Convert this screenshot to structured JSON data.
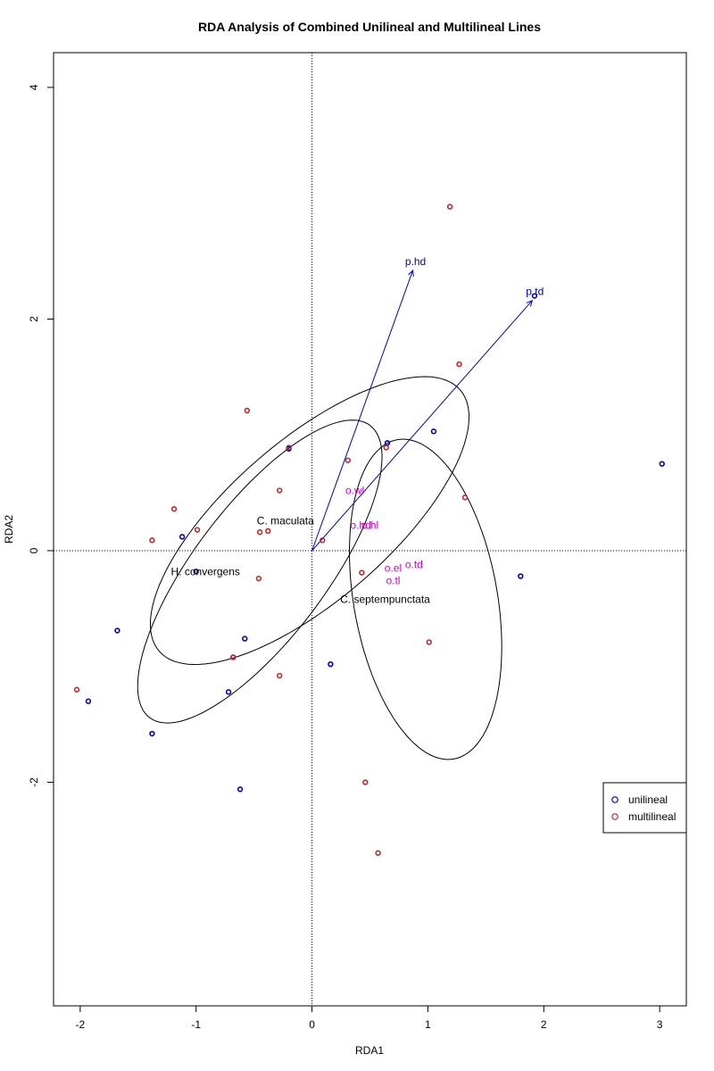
{
  "chart_data": {
    "type": "scatter",
    "title": "RDA Analysis of Combined Unilineal and Multilineal Lines",
    "xlabel": "RDA1",
    "ylabel": "RDA2",
    "xlim": [
      -2.23,
      3.23
    ],
    "ylim": [
      -3.93,
      4.3
    ],
    "x_ticks": [
      -2,
      -1,
      0,
      1,
      2,
      3
    ],
    "y_ticks": [
      -2,
      0,
      2,
      4
    ],
    "reference_lines": {
      "x": 0,
      "y": 0,
      "style": "dotted"
    },
    "legend_position": "right",
    "series": [
      {
        "name": "unilineal",
        "color": "#0000cc",
        "points": [
          [
            0.65,
            0.93
          ],
          [
            1.05,
            1.03
          ],
          [
            3.02,
            0.75
          ],
          [
            1.8,
            -0.22
          ],
          [
            1.92,
            2.2
          ],
          [
            -1.12,
            0.12
          ],
          [
            -1.0,
            -0.18
          ],
          [
            -1.68,
            -0.69
          ],
          [
            -1.93,
            -1.3
          ],
          [
            -1.38,
            -1.58
          ],
          [
            -0.58,
            -0.76
          ],
          [
            -0.72,
            -1.22
          ],
          [
            -0.62,
            -2.06
          ],
          [
            0.16,
            -0.98
          ],
          [
            -0.2,
            0.88
          ],
          [
            -0.68,
            -0.92
          ]
        ]
      },
      {
        "name": "multilineal",
        "color": "#cc2222",
        "points": [
          [
            1.19,
            2.97
          ],
          [
            1.27,
            1.61
          ],
          [
            -0.56,
            1.21
          ],
          [
            -0.2,
            0.89
          ],
          [
            0.31,
            0.78
          ],
          [
            0.64,
            0.89
          ],
          [
            1.32,
            0.46
          ],
          [
            -0.28,
            0.52
          ],
          [
            -1.19,
            0.36
          ],
          [
            -0.99,
            0.18
          ],
          [
            -1.38,
            0.09
          ],
          [
            -0.45,
            0.16
          ],
          [
            -0.38,
            0.17
          ],
          [
            0.09,
            0.09
          ],
          [
            0.43,
            -0.19
          ],
          [
            -0.46,
            -0.24
          ],
          [
            1.01,
            -0.79
          ],
          [
            -0.68,
            -0.92
          ],
          [
            -0.28,
            -1.08
          ],
          [
            -2.03,
            -1.2
          ],
          [
            0.46,
            -2.0
          ],
          [
            0.57,
            -2.61
          ]
        ]
      }
    ],
    "group_ellipses": [
      {
        "label": "C. maculata",
        "center": [
          -0.02,
          0.26
        ],
        "a": 1.72,
        "b": 0.69,
        "angle_deg": 41,
        "label_at": [
          -0.26,
          0.26
        ]
      },
      {
        "label": "H. convergens",
        "center": [
          -0.45,
          -0.18
        ],
        "a": 1.58,
        "b": 0.57,
        "angle_deg": 53,
        "label_at": [
          -0.95,
          -0.18
        ]
      },
      {
        "label": "C. septempunctata",
        "center": [
          0.98,
          -0.42
        ],
        "a": 1.4,
        "b": 0.62,
        "angle_deg": 100,
        "label_at": [
          0.6,
          -0.42
        ]
      }
    ],
    "biplot_arrows": [
      {
        "label": "p.hd",
        "x": 0.87,
        "y": 2.42,
        "color": "#0000cc"
      },
      {
        "label": "p.td",
        "x": 1.9,
        "y": 2.16,
        "color": "#0000cc"
      }
    ],
    "variable_scores": [
      {
        "label": "o.wl",
        "x": 0.37,
        "y": 0.52,
        "color": "#cc00cc"
      },
      {
        "label": "o.hd",
        "x": 0.42,
        "y": 0.22,
        "color": "#cc00cc"
      },
      {
        "label": "o.hl",
        "x": 0.5,
        "y": 0.22,
        "color": "#cc00cc"
      },
      {
        "label": "o.el",
        "x": 0.7,
        "y": -0.15,
        "color": "#cc00cc"
      },
      {
        "label": "o.td",
        "x": 0.88,
        "y": -0.12,
        "color": "#cc00cc"
      },
      {
        "label": "o.tl",
        "x": 0.7,
        "y": -0.26,
        "color": "#cc00cc"
      }
    ]
  }
}
